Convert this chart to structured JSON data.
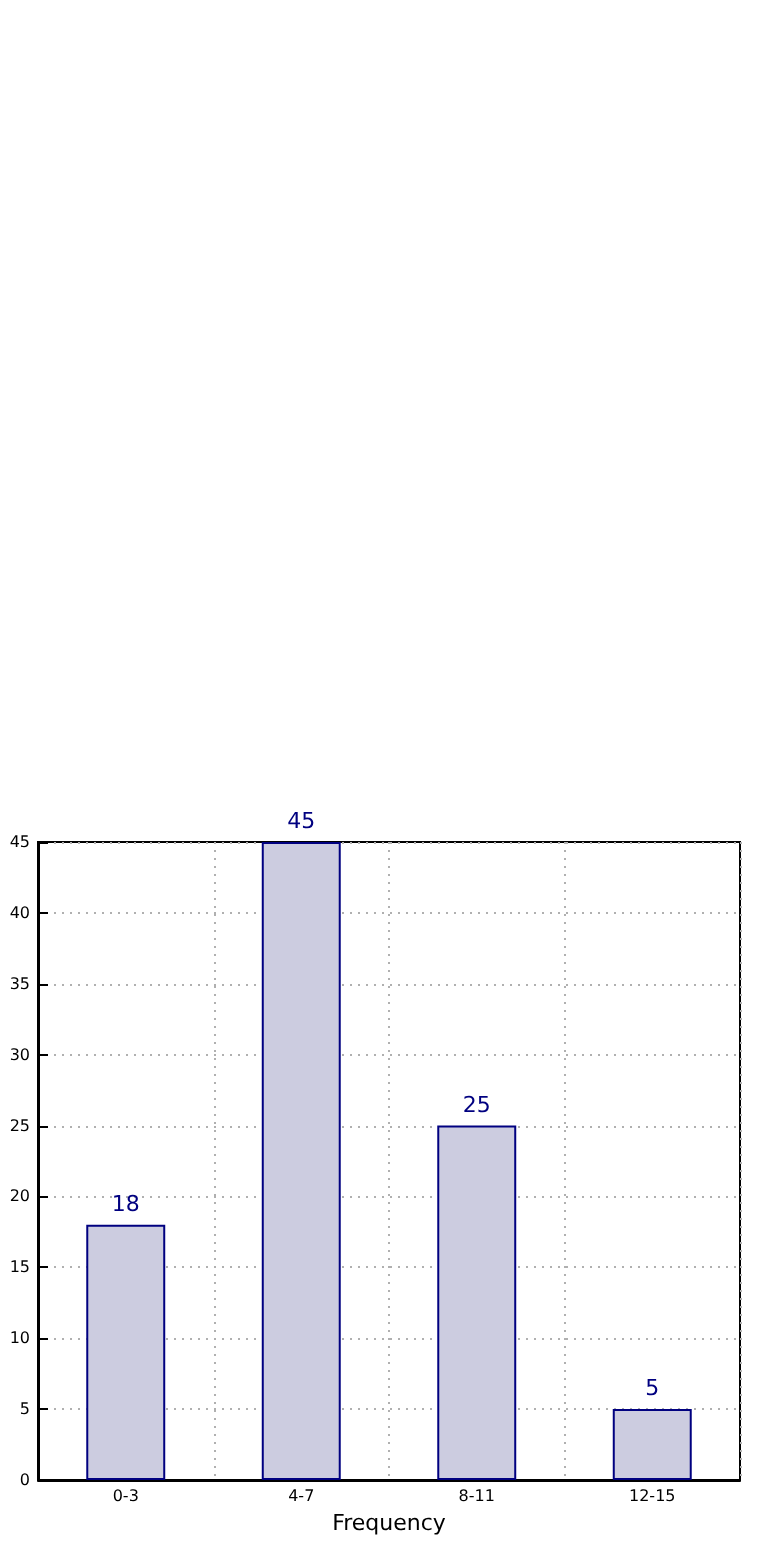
{
  "chart_data": {
    "type": "bar",
    "xlabel": "Frequency",
    "categories": [
      "0-3",
      "4-7",
      "8-11",
      "12-15"
    ],
    "values": [
      18,
      45,
      25,
      5
    ],
    "color": "#cccce0",
    "ylim": [
      0,
      45
    ],
    "yticks": [
      0,
      5,
      10,
      15,
      20,
      25,
      30,
      35,
      40,
      45
    ],
    "grid": true,
    "data_labels": true
  }
}
